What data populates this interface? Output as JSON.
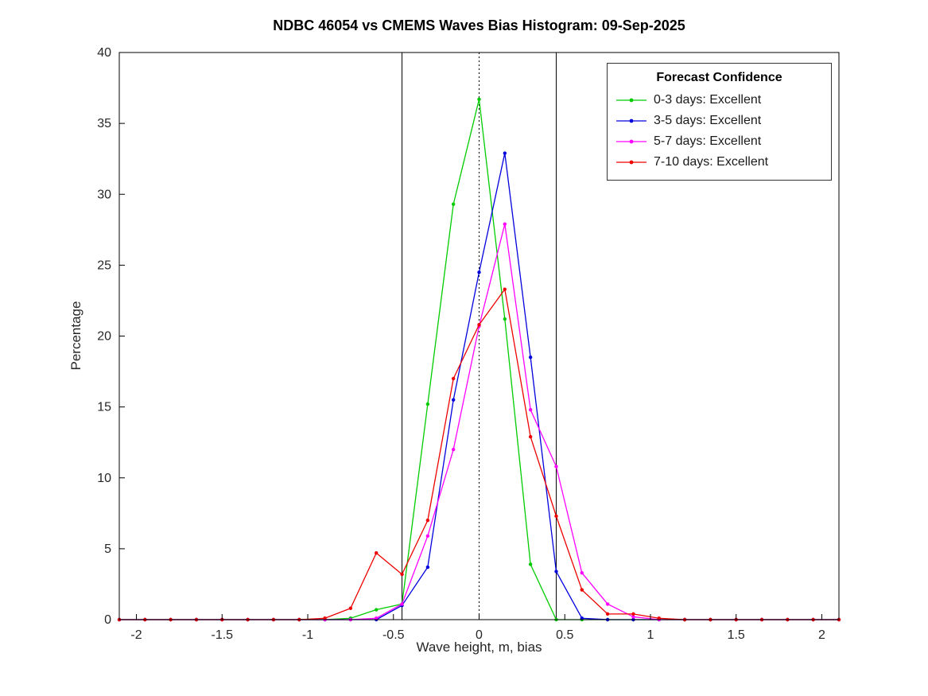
{
  "chart_data": {
    "type": "line",
    "title": "NDBC 46054 vs CMEMS Waves Bias Histogram: 09-Sep-2025",
    "xlabel": "Wave height, m, bias",
    "ylabel": "Percentage",
    "xlim": [
      -2.1,
      2.1
    ],
    "ylim": [
      0,
      40
    ],
    "grid": false,
    "xticks": [
      -2,
      -1.5,
      -1,
      -0.5,
      0,
      0.5,
      1,
      1.5,
      2
    ],
    "xtick_labels": [
      "-2",
      "-1.5",
      "-1",
      "-0.5",
      "0",
      "0.5",
      "1",
      "1.5",
      "2"
    ],
    "yticks": [
      0,
      5,
      10,
      15,
      20,
      25,
      30,
      35,
      40
    ],
    "ytick_labels": [
      "0",
      "5",
      "10",
      "15",
      "20",
      "25",
      "30",
      "35",
      "40"
    ],
    "legend": {
      "title": "Forecast Confidence",
      "position": "top-right"
    },
    "vlines": [
      {
        "x": -0.45,
        "style": "solid",
        "color": "#000000"
      },
      {
        "x": 0,
        "style": "dotted",
        "color": "#000000"
      },
      {
        "x": 0.45,
        "style": "solid",
        "color": "#000000"
      }
    ],
    "x": [
      -2.1,
      -1.95,
      -1.8,
      -1.65,
      -1.5,
      -1.35,
      -1.2,
      -1.05,
      -0.9,
      -0.75,
      -0.6,
      -0.45,
      -0.3,
      -0.15,
      0,
      0.15,
      0.3,
      0.45,
      0.6,
      0.75,
      0.9,
      1.05,
      1.2,
      1.35,
      1.5,
      1.65,
      1.8,
      1.95,
      2.1
    ],
    "series": [
      {
        "name": "0-3 days: Excellent",
        "color": "#00cc00",
        "values": [
          0,
          0,
          0,
          0,
          0,
          0,
          0,
          0,
          0,
          0.1,
          0.7,
          1.1,
          15.2,
          29.3,
          36.7,
          21.2,
          3.9,
          0,
          0,
          0,
          0,
          0,
          0,
          0,
          0,
          0,
          0,
          0,
          0
        ]
      },
      {
        "name": "3-5 days: Excellent",
        "color": "#0000dd",
        "values": [
          0,
          0,
          0,
          0,
          0,
          0,
          0,
          0,
          0,
          0,
          0,
          1.0,
          3.7,
          15.5,
          24.5,
          32.9,
          18.5,
          3.4,
          0.1,
          0,
          0,
          0,
          0,
          0,
          0,
          0,
          0,
          0,
          0
        ]
      },
      {
        "name": "5-7 days: Excellent",
        "color": "#ff00ff",
        "values": [
          0,
          0,
          0,
          0,
          0,
          0,
          0,
          0,
          0,
          0,
          0.1,
          1.1,
          5.9,
          12.0,
          20.7,
          27.9,
          14.8,
          10.8,
          3.3,
          1.1,
          0.2,
          0,
          0,
          0,
          0,
          0,
          0,
          0,
          0
        ]
      },
      {
        "name": "7-10 days: Excellent",
        "color": "#ee0000",
        "values": [
          0,
          0,
          0,
          0,
          0,
          0,
          0,
          0,
          0.1,
          0.8,
          4.7,
          3.2,
          7.0,
          17.0,
          20.8,
          23.3,
          12.9,
          7.3,
          2.1,
          0.4,
          0.4,
          0.1,
          0,
          0,
          0,
          0,
          0,
          0,
          0
        ]
      }
    ]
  }
}
